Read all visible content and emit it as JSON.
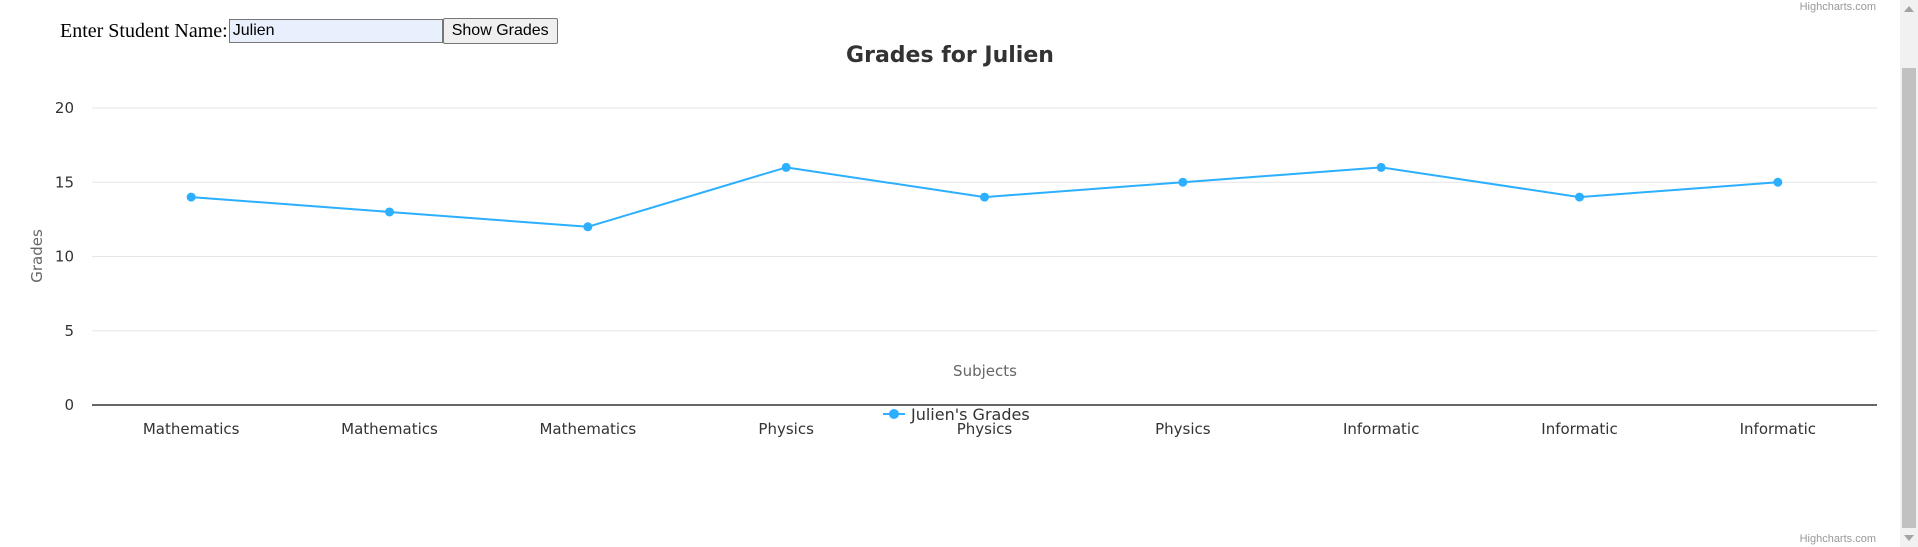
{
  "form": {
    "label": "Enter Student Name:",
    "input_value": "Julien",
    "button_label": "Show Grades"
  },
  "credits": {
    "top": "Highcharts.com",
    "bottom": "Highcharts.com"
  },
  "colors": {
    "series": "#2caffe",
    "axis_line": "#333333",
    "grid": "#e6e6e6"
  },
  "chart_data": {
    "type": "line",
    "title": "Grades for Julien",
    "xlabel": "Subjects",
    "ylabel": "Grades",
    "ylim": [
      0,
      20
    ],
    "yticks": [
      "0",
      "5",
      "10",
      "15",
      "20"
    ],
    "categories": [
      "Mathematics",
      "Mathematics",
      "Mathematics",
      "Physics",
      "Physics",
      "Physics",
      "Informatic",
      "Informatic",
      "Informatic"
    ],
    "series": [
      {
        "name": "Julien's Grades",
        "values": [
          14,
          13,
          12,
          16,
          14,
          15,
          16,
          14,
          15
        ]
      }
    ],
    "grid": true,
    "legend": "bottom-center"
  }
}
